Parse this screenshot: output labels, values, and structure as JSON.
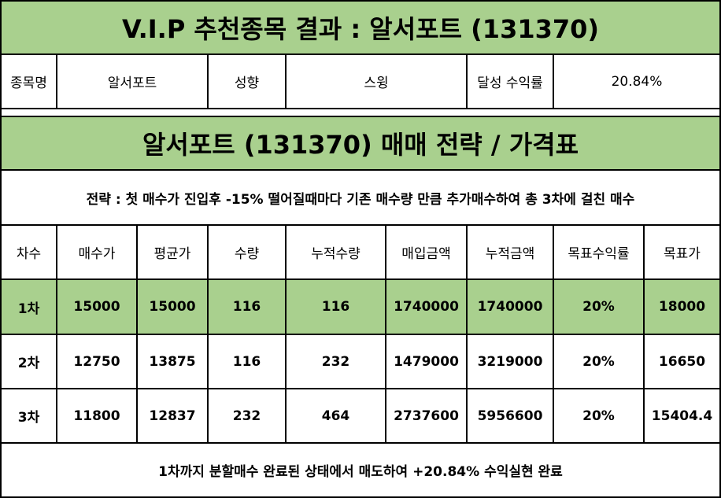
{
  "title": "V.I.P 추천종목 결과 : 알서포트 (131370)",
  "info": {
    "stock_label": "종목명",
    "stock_value": "알서포트",
    "tendency_label": "성향",
    "tendency_value": "스윙",
    "return_label": "달성 수익률",
    "return_value": "20.84%"
  },
  "strategy_title": "알서포트 (131370) 매매 전략 / 가격표",
  "strategy_desc": "전략 : 첫 매수가 진입후 -15% 떨어질때마다 기존 매수량 만큼 추가매수하여 총 3차에 걸친 매수",
  "table": {
    "headers": [
      "차수",
      "매수가",
      "평균가",
      "수량",
      "누적수량",
      "매입금액",
      "누적금액",
      "목표수익률",
      "목표가"
    ],
    "rows": [
      [
        "1차",
        "15000",
        "15000",
        "116",
        "116",
        "1740000",
        "1740000",
        "20%",
        "18000"
      ],
      [
        "2차",
        "12750",
        "13875",
        "116",
        "232",
        "1479000",
        "3219000",
        "20%",
        "16650"
      ],
      [
        "3차",
        "11800",
        "12837",
        "232",
        "464",
        "2737600",
        "5956600",
        "20%",
        "15404.4"
      ]
    ]
  },
  "footer": "1차까지 분할매수 완료된 상태에서 매도하여 +20.84% 수익실현 완료",
  "colors": {
    "header_green": "#a9d08e",
    "border": "#000000",
    "background": "#ffffff"
  }
}
